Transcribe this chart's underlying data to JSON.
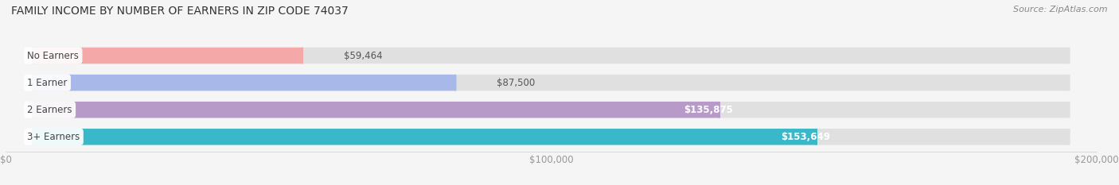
{
  "title": "FAMILY INCOME BY NUMBER OF EARNERS IN ZIP CODE 74037",
  "source": "Source: ZipAtlas.com",
  "categories": [
    "No Earners",
    "1 Earner",
    "2 Earners",
    "3+ Earners"
  ],
  "values": [
    59464,
    87500,
    135875,
    153649
  ],
  "value_labels": [
    "$59,464",
    "$87,500",
    "$135,875",
    "$153,649"
  ],
  "bar_colors": [
    "#f4a8a8",
    "#a8b8e8",
    "#b89ac8",
    "#38b8c8"
  ],
  "label_bg": "#f0f0f0",
  "label_text": "#555555",
  "xlim": [
    0,
    200000
  ],
  "xticks": [
    0,
    100000,
    200000
  ],
  "xticklabels": [
    "$0",
    "$100,000",
    "$200,000"
  ],
  "title_fontsize": 10,
  "source_fontsize": 8,
  "bg_color": "#f5f5f5",
  "bar_bg_color": "#e0e0e0",
  "label_colors_inside": [
    false,
    false,
    true,
    true
  ]
}
